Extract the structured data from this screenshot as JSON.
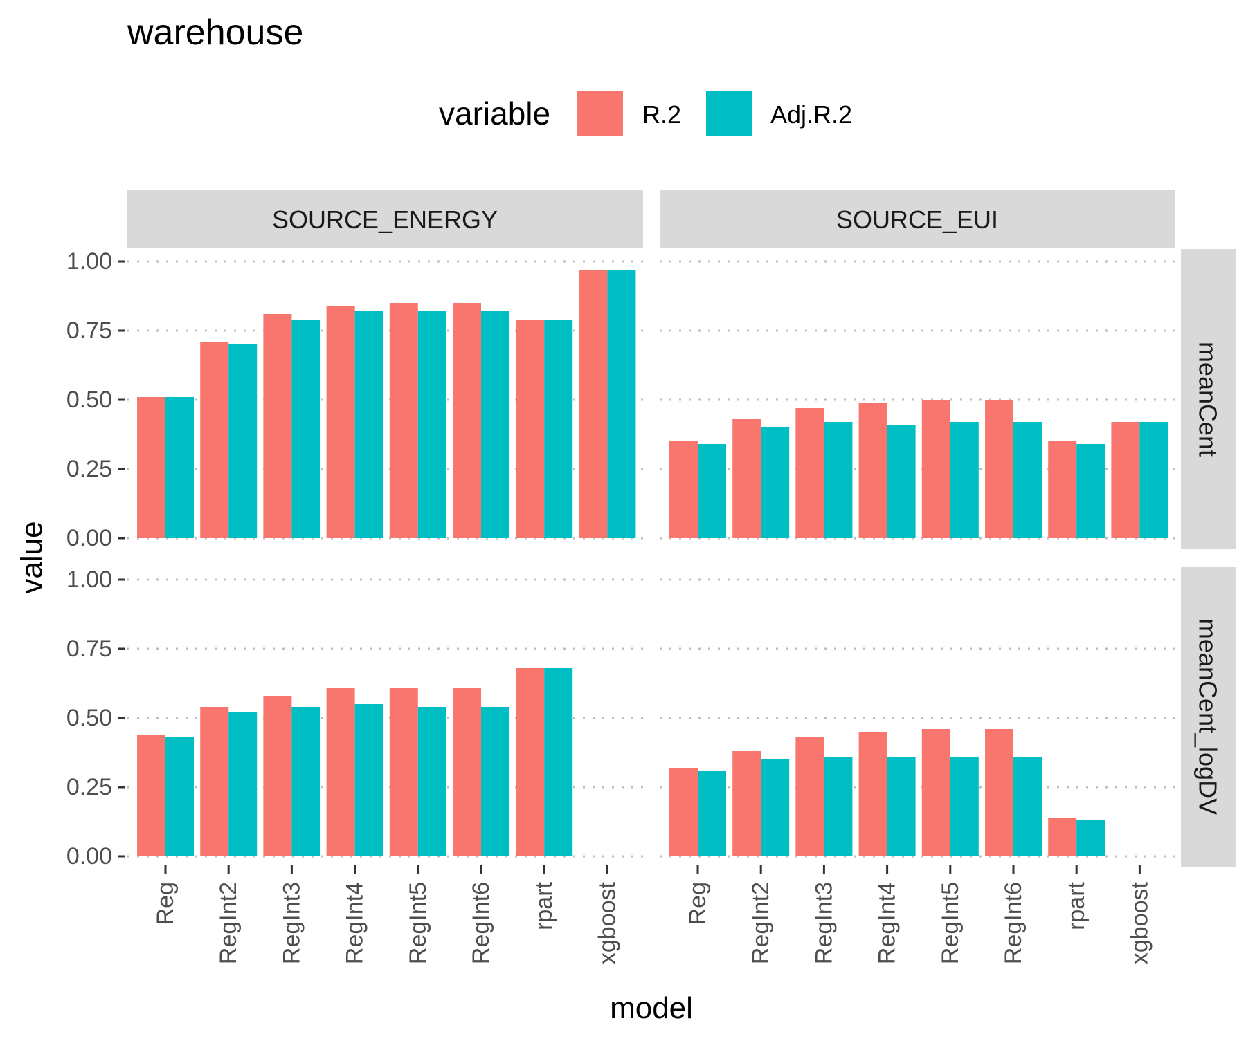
{
  "chart_data": {
    "type": "bar",
    "title": "warehouse",
    "xlabel": "model",
    "ylabel": "value",
    "legend_title": "variable",
    "legend_position": "top",
    "grid": "dotted horizontal major",
    "ylim": [
      0,
      1
    ],
    "yticks": [
      "0.00",
      "0.25",
      "0.50",
      "0.75",
      "1.00"
    ],
    "categories": [
      "Reg",
      "RegInt2",
      "RegInt3",
      "RegInt4",
      "RegInt5",
      "RegInt6",
      "rpart",
      "xgboost"
    ],
    "series_meta": [
      {
        "name": "R.2",
        "color": "#F8766D"
      },
      {
        "name": "Adj.R.2",
        "color": "#00BFC4"
      }
    ],
    "col_facets": [
      "SOURCE_ENERGY",
      "SOURCE_EUI"
    ],
    "row_facets": [
      "meanCent",
      "meanCent_logDV"
    ],
    "panels": [
      {
        "row": 0,
        "col": 0,
        "series": [
          {
            "name": "R.2",
            "values": [
              0.51,
              0.71,
              0.81,
              0.84,
              0.85,
              0.85,
              0.79,
              0.97
            ]
          },
          {
            "name": "Adj.R.2",
            "values": [
              0.51,
              0.7,
              0.79,
              0.82,
              0.82,
              0.82,
              0.79,
              0.97
            ]
          }
        ]
      },
      {
        "row": 0,
        "col": 1,
        "series": [
          {
            "name": "R.2",
            "values": [
              0.35,
              0.43,
              0.47,
              0.49,
              0.5,
              0.5,
              0.35,
              0.42
            ]
          },
          {
            "name": "Adj.R.2",
            "values": [
              0.34,
              0.4,
              0.42,
              0.41,
              0.42,
              0.42,
              0.34,
              0.42
            ]
          }
        ]
      },
      {
        "row": 1,
        "col": 0,
        "series": [
          {
            "name": "R.2",
            "values": [
              0.44,
              0.54,
              0.58,
              0.61,
              0.61,
              0.61,
              0.68,
              null
            ]
          },
          {
            "name": "Adj.R.2",
            "values": [
              0.43,
              0.52,
              0.54,
              0.55,
              0.54,
              0.54,
              0.68,
              null
            ]
          }
        ]
      },
      {
        "row": 1,
        "col": 1,
        "series": [
          {
            "name": "R.2",
            "values": [
              0.32,
              0.38,
              0.43,
              0.45,
              0.46,
              0.46,
              0.14,
              null
            ]
          },
          {
            "name": "Adj.R.2",
            "values": [
              0.31,
              0.35,
              0.36,
              0.36,
              0.36,
              0.36,
              0.13,
              null
            ]
          }
        ]
      }
    ]
  }
}
